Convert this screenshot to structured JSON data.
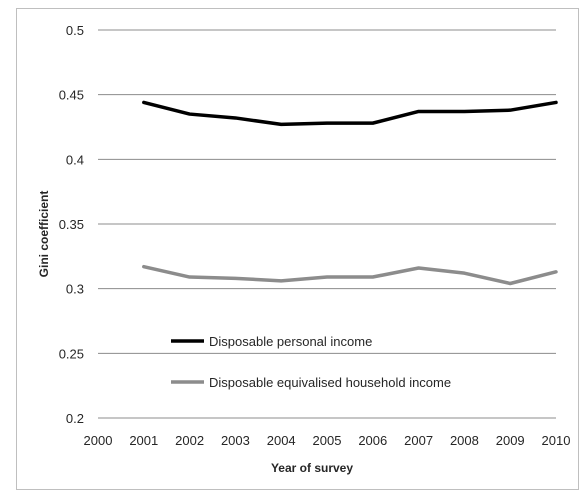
{
  "chart_data": {
    "type": "line",
    "xlabel": "Year of survey",
    "ylabel": "Gini coefficient",
    "x": [
      2000,
      2001,
      2002,
      2003,
      2004,
      2005,
      2006,
      2007,
      2008,
      2009,
      2010
    ],
    "x_ticks": [
      "2000",
      "2001",
      "2002",
      "2003",
      "2004",
      "2005",
      "2006",
      "2007",
      "2008",
      "2009",
      "2010"
    ],
    "ylim": [
      0.2,
      0.5
    ],
    "y_ticks": [
      "0.2",
      "0.25",
      "0.3",
      "0.35",
      "0.4",
      "0.45",
      "0.5"
    ],
    "grid": true,
    "legend_position": "lower-left",
    "series": [
      {
        "name": "Disposable personal income",
        "color": "#000000",
        "x": [
          2001,
          2002,
          2003,
          2004,
          2005,
          2006,
          2007,
          2008,
          2009,
          2010
        ],
        "values": [
          0.444,
          0.435,
          0.432,
          0.427,
          0.428,
          0.428,
          0.437,
          0.437,
          0.438,
          0.444
        ]
      },
      {
        "name": "Disposable equivalised household income",
        "color": "#8c8c8c",
        "x": [
          2001,
          2002,
          2003,
          2004,
          2005,
          2006,
          2007,
          2008,
          2009,
          2010
        ],
        "values": [
          0.317,
          0.309,
          0.308,
          0.306,
          0.309,
          0.309,
          0.316,
          0.312,
          0.304,
          0.313
        ]
      }
    ]
  }
}
